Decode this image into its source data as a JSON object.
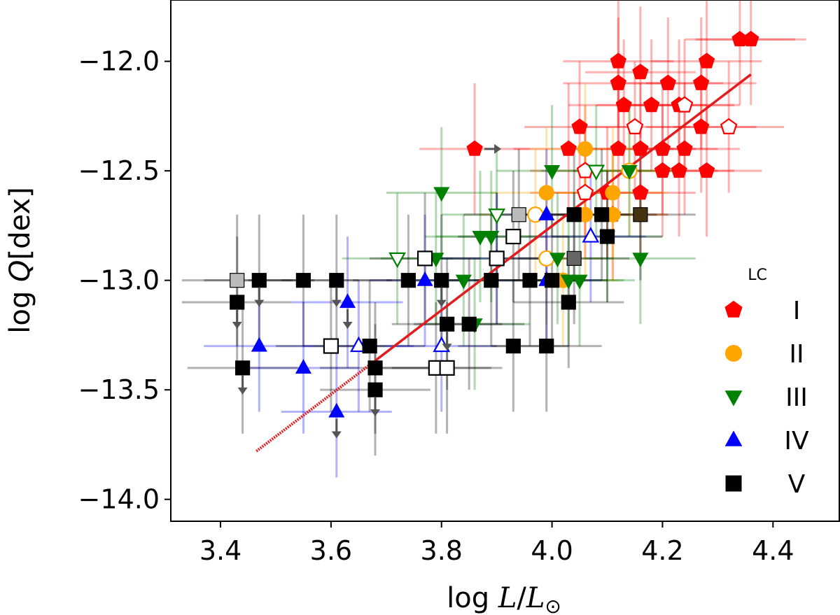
{
  "chart_data": {
    "type": "scatter",
    "xlabel_parts": {
      "prefix": "log ",
      "num": "L",
      "sep": "/",
      "den": "L",
      "sub": "⊙"
    },
    "ylabel_parts": {
      "prefix": "log ",
      "var": "Q",
      "unit": "[dex]"
    },
    "xlim": [
      3.31,
      4.52
    ],
    "ylim": [
      -14.1,
      -11.72
    ],
    "xticks": [
      3.4,
      3.6,
      3.8,
      4.0,
      4.2,
      4.4
    ],
    "xtick_labels": [
      "3.4",
      "3.6",
      "3.8",
      "4.0",
      "4.2",
      "4.4"
    ],
    "yticks": [
      -12.0,
      -12.5,
      -13.0,
      -13.5,
      -14.0
    ],
    "ytick_labels": [
      "−12.0",
      "−12.5",
      "−13.0",
      "−13.5",
      "−14.0"
    ],
    "colors": {
      "I": "#ff0000",
      "II": "#ffa500",
      "III": "#008000",
      "IV": "#0000ff",
      "V": "#000000",
      "fit": "#e41a1c",
      "arrow": "#555555"
    },
    "fit_line": {
      "x_start": 3.465,
      "y_start": -13.78,
      "x_end": 4.36,
      "y_end": -12.06,
      "dotted_until_x": 3.68
    },
    "legend": {
      "title": "LC",
      "entries": [
        {
          "label": "I",
          "marker": "pentagon",
          "color": "#ff0000"
        },
        {
          "label": "II",
          "marker": "circle",
          "color": "#ffa500"
        },
        {
          "label": "III",
          "marker": "triangle-down",
          "color": "#008000"
        },
        {
          "label": "IV",
          "marker": "triangle-up",
          "color": "#0000ff"
        },
        {
          "label": "V",
          "marker": "square",
          "color": "#000000"
        }
      ]
    },
    "series": [
      {
        "name": "I",
        "marker": "pentagon",
        "color": "#ff0000",
        "points": [
          {
            "x": 4.34,
            "y": -11.9
          },
          {
            "x": 4.36,
            "y": -11.9
          },
          {
            "x": 4.12,
            "y": -12.0
          },
          {
            "x": 4.28,
            "y": -12.0
          },
          {
            "x": 4.16,
            "y": -12.05
          },
          {
            "x": 4.12,
            "y": -12.1
          },
          {
            "x": 4.21,
            "y": -12.1
          },
          {
            "x": 4.27,
            "y": -12.1
          },
          {
            "x": 4.13,
            "y": -12.2
          },
          {
            "x": 4.18,
            "y": -12.2
          },
          {
            "x": 4.23,
            "y": -12.2
          },
          {
            "x": 4.24,
            "y": -12.2,
            "open": true
          },
          {
            "x": 4.05,
            "y": -12.3
          },
          {
            "x": 4.15,
            "y": -12.3,
            "open": true
          },
          {
            "x": 4.27,
            "y": -12.3
          },
          {
            "x": 4.32,
            "y": -12.3,
            "open": true
          },
          {
            "x": 3.86,
            "y": -12.4,
            "arrow": "right"
          },
          {
            "x": 4.03,
            "y": -12.4
          },
          {
            "x": 4.12,
            "y": -12.4
          },
          {
            "x": 4.16,
            "y": -12.4
          },
          {
            "x": 4.2,
            "y": -12.4
          },
          {
            "x": 4.24,
            "y": -12.4
          },
          {
            "x": 4.06,
            "y": -12.5,
            "open": true
          },
          {
            "x": 4.2,
            "y": -12.5
          },
          {
            "x": 4.23,
            "y": -12.5
          },
          {
            "x": 4.28,
            "y": -12.5
          },
          {
            "x": 4.06,
            "y": -12.6,
            "open": true
          },
          {
            "x": 4.1,
            "y": -12.6
          },
          {
            "x": 4.16,
            "y": -12.6
          },
          {
            "x": 4.11,
            "y": -12.7
          }
        ]
      },
      {
        "name": "II",
        "marker": "circle",
        "color": "#ffa500",
        "points": [
          {
            "x": 4.06,
            "y": -12.4
          },
          {
            "x": 4.14,
            "y": -12.5,
            "open": true
          },
          {
            "x": 3.99,
            "y": -12.6
          },
          {
            "x": 4.11,
            "y": -12.6
          },
          {
            "x": 3.97,
            "y": -12.7,
            "open": true
          },
          {
            "x": 4.06,
            "y": -12.7
          },
          {
            "x": 4.11,
            "y": -12.7
          },
          {
            "x": 3.99,
            "y": -12.9,
            "open": true
          },
          {
            "x": 4.02,
            "y": -13.0
          }
        ]
      },
      {
        "name": "III",
        "marker": "triangle-down",
        "color": "#008000",
        "points": [
          {
            "x": 4.0,
            "y": -12.5
          },
          {
            "x": 4.08,
            "y": -12.5,
            "open": true
          },
          {
            "x": 4.14,
            "y": -12.5
          },
          {
            "x": 3.8,
            "y": -12.6
          },
          {
            "x": 3.9,
            "y": -12.7,
            "open": true
          },
          {
            "x": 3.87,
            "y": -12.8
          },
          {
            "x": 3.89,
            "y": -12.8
          },
          {
            "x": 4.1,
            "y": -12.8
          },
          {
            "x": 3.72,
            "y": -12.9,
            "open": true
          },
          {
            "x": 3.79,
            "y": -12.9
          },
          {
            "x": 4.01,
            "y": -12.9
          },
          {
            "x": 4.16,
            "y": -12.9
          },
          {
            "x": 3.84,
            "y": -13.0
          },
          {
            "x": 4.03,
            "y": -13.0
          },
          {
            "x": 4.05,
            "y": -13.0
          },
          {
            "x": 3.86,
            "y": -13.2
          }
        ]
      },
      {
        "name": "IV",
        "marker": "triangle-up",
        "color": "#0000ff",
        "points": [
          {
            "x": 3.99,
            "y": -12.7
          },
          {
            "x": 4.07,
            "y": -12.8,
            "open": true
          },
          {
            "x": 3.9,
            "y": -12.9
          },
          {
            "x": 3.77,
            "y": -13.0
          },
          {
            "x": 3.99,
            "y": -13.0
          },
          {
            "x": 3.63,
            "y": -13.1,
            "arrow": "down"
          },
          {
            "x": 3.47,
            "y": -13.3
          },
          {
            "x": 3.65,
            "y": -13.3,
            "open": true
          },
          {
            "x": 3.8,
            "y": -13.3,
            "open": true
          },
          {
            "x": 3.55,
            "y": -13.4
          },
          {
            "x": 3.61,
            "y": -13.6,
            "arrow": "down"
          }
        ]
      },
      {
        "name": "V",
        "marker": "square",
        "color": "#000000",
        "points": [
          {
            "x": 3.94,
            "y": -12.7,
            "fill": "#bbbbbb"
          },
          {
            "x": 4.04,
            "y": -12.7
          },
          {
            "x": 4.09,
            "y": -12.7
          },
          {
            "x": 4.16,
            "y": -12.7,
            "fill": "#443311"
          },
          {
            "x": 3.93,
            "y": -12.8,
            "open": true
          },
          {
            "x": 4.1,
            "y": -12.8
          },
          {
            "x": 3.77,
            "y": -12.9,
            "open": true
          },
          {
            "x": 3.9,
            "y": -12.9,
            "open": true
          },
          {
            "x": 4.04,
            "y": -12.9,
            "fill": "#666666"
          },
          {
            "x": 3.43,
            "y": -13.0,
            "fill": "#bbbbbb"
          },
          {
            "x": 3.47,
            "y": -13.0,
            "arrow": "down"
          },
          {
            "x": 3.55,
            "y": -13.0
          },
          {
            "x": 3.61,
            "y": -13.0,
            "arrow": "down"
          },
          {
            "x": 3.74,
            "y": -13.0
          },
          {
            "x": 3.8,
            "y": -13.0,
            "arrow": "down"
          },
          {
            "x": 3.89,
            "y": -13.0
          },
          {
            "x": 3.96,
            "y": -13.0
          },
          {
            "x": 4.0,
            "y": -13.0
          },
          {
            "x": 3.43,
            "y": -13.1,
            "arrow": "down"
          },
          {
            "x": 4.03,
            "y": -13.1
          },
          {
            "x": 3.81,
            "y": -13.2,
            "arrow": "down"
          },
          {
            "x": 3.85,
            "y": -13.2
          },
          {
            "x": 3.6,
            "y": -13.3,
            "open": true
          },
          {
            "x": 3.67,
            "y": -13.3
          },
          {
            "x": 3.93,
            "y": -13.3
          },
          {
            "x": 3.99,
            "y": -13.3
          },
          {
            "x": 3.44,
            "y": -13.4,
            "arrow": "down"
          },
          {
            "x": 3.68,
            "y": -13.4
          },
          {
            "x": 3.79,
            "y": -13.4,
            "open": true
          },
          {
            "x": 3.81,
            "y": -13.4,
            "open": true
          },
          {
            "x": 3.68,
            "y": -13.5,
            "arrow": "down"
          }
        ]
      }
    ]
  }
}
